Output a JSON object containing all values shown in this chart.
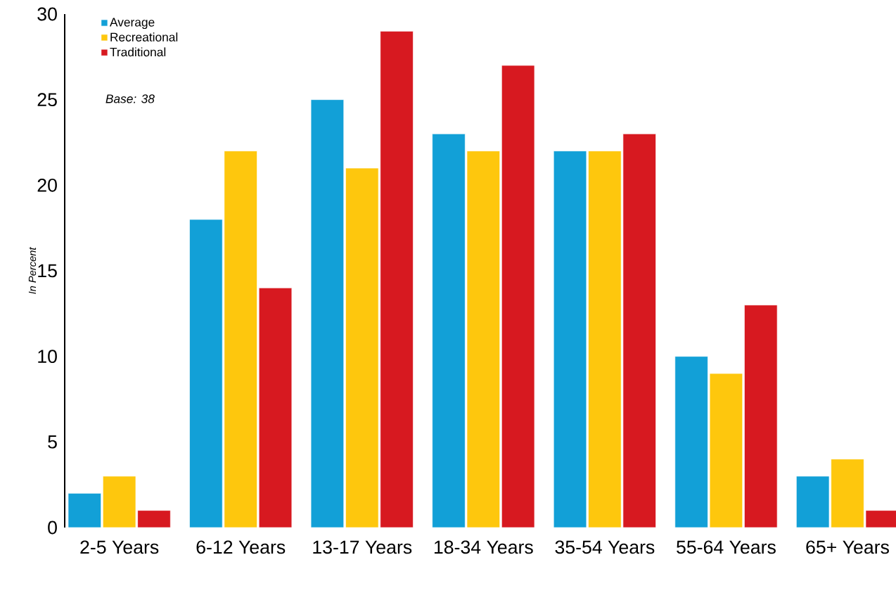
{
  "chart_data": {
    "type": "bar",
    "ylabel": "In Percent",
    "categories": [
      "2-5 Years",
      "6-12 Years",
      "13-17 Years",
      "18-34 Years",
      "35-54 Years",
      "55-64 Years",
      "65+ Years"
    ],
    "series": [
      {
        "name": "Average",
        "color": "#12a0d7",
        "values": [
          2,
          18,
          25,
          23,
          22,
          10,
          3
        ]
      },
      {
        "name": "Recreational",
        "color": "#fec70d",
        "values": [
          3,
          22,
          21,
          22,
          22,
          9,
          4
        ]
      },
      {
        "name": "Traditional",
        "color": "#d71920",
        "values": [
          1,
          14,
          29,
          27,
          23,
          13,
          1
        ]
      }
    ],
    "ylim": [
      0,
      30
    ],
    "yticks": [
      0,
      5,
      10,
      15,
      20,
      25,
      30
    ],
    "annotations": [
      "*Base: 38*"
    ],
    "legend": "top left",
    "grid": false
  }
}
